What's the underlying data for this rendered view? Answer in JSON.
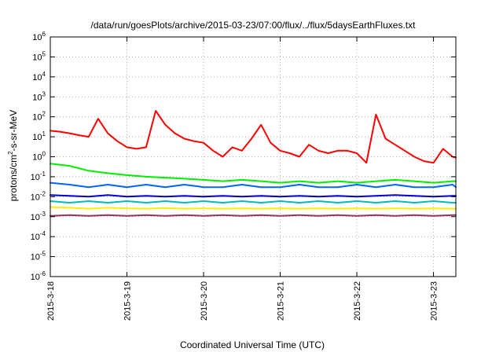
{
  "chart_data": {
    "type": "line",
    "title": "/data/run/goesPlots/archive/2015-03-23/07:00/flux/../flux/5daysEarthFluxes.txt",
    "xlabel": "Coordinated Universal Time (UTC)",
    "ylabel": "protons/cm2-s-sr-MeV",
    "ylabel_base": "protons/cm",
    "ylabel_sup": "2",
    "ylabel_rest": "-s-sr-MeV",
    "yscale": "log",
    "xlim": [
      "2015-03-18T00:00",
      "2015-03-23T07:00"
    ],
    "ylim": [
      1e-06,
      1000000.0
    ],
    "grid": true,
    "x_ticks": [
      "2015-3-18",
      "2015-3-19",
      "2015-3-20",
      "2015-3-21",
      "2015-3-22",
      "2015-3-23"
    ],
    "y_ticks": [
      {
        "value": 1e-06,
        "base": "10",
        "exp": "-6"
      },
      {
        "value": 1e-05,
        "base": "10",
        "exp": "-5"
      },
      {
        "value": 0.0001,
        "base": "10",
        "exp": "-4"
      },
      {
        "value": 0.001,
        "base": "10",
        "exp": "-3"
      },
      {
        "value": 0.01,
        "base": "10",
        "exp": "-2"
      },
      {
        "value": 0.1,
        "base": "10",
        "exp": "-1"
      },
      {
        "value": 1,
        "base": "10",
        "exp": "0"
      },
      {
        "value": 10,
        "base": "10",
        "exp": "1"
      },
      {
        "value": 100,
        "base": "10",
        "exp": "2"
      },
      {
        "value": 1000,
        "base": "10",
        "exp": "3"
      },
      {
        "value": 10000,
        "base": "10",
        "exp": "4"
      },
      {
        "value": 100000,
        "base": "10",
        "exp": "5"
      },
      {
        "value": 1000000,
        "base": "10",
        "exp": "6"
      }
    ],
    "series": [
      {
        "color": "#ff0000",
        "x": [
          "2015-03-18T00:00",
          "2015-03-18T03:00",
          "2015-03-18T06:00",
          "2015-03-18T09:00",
          "2015-03-18T12:00",
          "2015-03-18T15:00",
          "2015-03-18T18:00",
          "2015-03-18T21:00",
          "2015-03-19T00:00",
          "2015-03-19T03:00",
          "2015-03-19T06:00",
          "2015-03-19T09:00",
          "2015-03-19T12:00",
          "2015-03-19T15:00",
          "2015-03-19T18:00",
          "2015-03-19T21:00",
          "2015-03-20T00:00",
          "2015-03-20T03:00",
          "2015-03-20T06:00",
          "2015-03-20T09:00",
          "2015-03-20T12:00",
          "2015-03-20T15:00",
          "2015-03-20T18:00",
          "2015-03-20T21:00",
          "2015-03-21T00:00",
          "2015-03-21T03:00",
          "2015-03-21T06:00",
          "2015-03-21T09:00",
          "2015-03-21T12:00",
          "2015-03-21T15:00",
          "2015-03-21T18:00",
          "2015-03-21T21:00",
          "2015-03-22T00:00",
          "2015-03-22T03:00",
          "2015-03-22T06:00",
          "2015-03-22T09:00",
          "2015-03-22T12:00",
          "2015-03-22T15:00",
          "2015-03-22T18:00",
          "2015-03-22T21:00",
          "2015-03-23T00:00",
          "2015-03-23T03:00",
          "2015-03-23T06:00",
          "2015-03-23T07:00"
        ],
        "y": [
          20,
          18,
          15,
          12,
          10,
          80,
          15,
          6,
          3,
          2.5,
          3,
          200,
          40,
          15,
          8,
          6,
          5,
          2,
          1,
          3,
          2,
          8,
          40,
          5,
          2,
          1.5,
          1,
          4,
          2,
          1.5,
          2,
          2,
          1.5,
          0.5,
          130,
          8,
          4,
          2,
          1,
          0.6,
          0.5,
          2.5,
          1,
          0.9
        ]
      },
      {
        "color": "#00ee00",
        "x": [
          "2015-03-18T00:00",
          "2015-03-18T06:00",
          "2015-03-18T12:00",
          "2015-03-18T18:00",
          "2015-03-19T00:00",
          "2015-03-19T06:00",
          "2015-03-19T12:00",
          "2015-03-19T18:00",
          "2015-03-20T00:00",
          "2015-03-20T06:00",
          "2015-03-20T12:00",
          "2015-03-20T18:00",
          "2015-03-21T00:00",
          "2015-03-21T06:00",
          "2015-03-21T12:00",
          "2015-03-21T18:00",
          "2015-03-22T00:00",
          "2015-03-22T06:00",
          "2015-03-22T12:00",
          "2015-03-22T18:00",
          "2015-03-23T00:00",
          "2015-03-23T06:00",
          "2015-03-23T07:00"
        ],
        "y": [
          0.45,
          0.35,
          0.2,
          0.15,
          0.12,
          0.1,
          0.09,
          0.08,
          0.07,
          0.06,
          0.07,
          0.06,
          0.05,
          0.06,
          0.05,
          0.06,
          0.05,
          0.06,
          0.07,
          0.06,
          0.05,
          0.06,
          0.06
        ]
      },
      {
        "color": "#0066ff",
        "x": [
          "2015-03-18T00:00",
          "2015-03-18T06:00",
          "2015-03-18T12:00",
          "2015-03-18T18:00",
          "2015-03-19T00:00",
          "2015-03-19T06:00",
          "2015-03-19T12:00",
          "2015-03-19T18:00",
          "2015-03-20T00:00",
          "2015-03-20T06:00",
          "2015-03-20T12:00",
          "2015-03-20T18:00",
          "2015-03-21T00:00",
          "2015-03-21T06:00",
          "2015-03-21T12:00",
          "2015-03-21T18:00",
          "2015-03-22T00:00",
          "2015-03-22T06:00",
          "2015-03-22T12:00",
          "2015-03-22T18:00",
          "2015-03-23T00:00",
          "2015-03-23T06:00",
          "2015-03-23T07:00"
        ],
        "y": [
          0.05,
          0.04,
          0.03,
          0.04,
          0.03,
          0.04,
          0.03,
          0.04,
          0.03,
          0.03,
          0.04,
          0.03,
          0.03,
          0.04,
          0.03,
          0.03,
          0.04,
          0.03,
          0.04,
          0.03,
          0.03,
          0.04,
          0.03
        ]
      },
      {
        "color": "#0000cc",
        "x": [
          "2015-03-18T00:00",
          "2015-03-18T06:00",
          "2015-03-18T12:00",
          "2015-03-18T18:00",
          "2015-03-19T00:00",
          "2015-03-19T06:00",
          "2015-03-19T12:00",
          "2015-03-19T18:00",
          "2015-03-20T00:00",
          "2015-03-20T06:00",
          "2015-03-20T12:00",
          "2015-03-20T18:00",
          "2015-03-21T00:00",
          "2015-03-21T06:00",
          "2015-03-21T12:00",
          "2015-03-21T18:00",
          "2015-03-22T00:00",
          "2015-03-22T06:00",
          "2015-03-22T12:00",
          "2015-03-22T18:00",
          "2015-03-23T00:00",
          "2015-03-23T06:00",
          "2015-03-23T07:00"
        ],
        "y": [
          0.012,
          0.011,
          0.01,
          0.012,
          0.01,
          0.011,
          0.01,
          0.011,
          0.01,
          0.011,
          0.01,
          0.011,
          0.01,
          0.011,
          0.01,
          0.011,
          0.01,
          0.011,
          0.012,
          0.011,
          0.01,
          0.011,
          0.011
        ]
      },
      {
        "color": "#00bbbb",
        "x": [
          "2015-03-18T00:00",
          "2015-03-18T06:00",
          "2015-03-18T12:00",
          "2015-03-18T18:00",
          "2015-03-19T00:00",
          "2015-03-19T06:00",
          "2015-03-19T12:00",
          "2015-03-19T18:00",
          "2015-03-20T00:00",
          "2015-03-20T06:00",
          "2015-03-20T12:00",
          "2015-03-20T18:00",
          "2015-03-21T00:00",
          "2015-03-21T06:00",
          "2015-03-21T12:00",
          "2015-03-21T18:00",
          "2015-03-22T00:00",
          "2015-03-22T06:00",
          "2015-03-22T12:00",
          "2015-03-22T18:00",
          "2015-03-23T00:00",
          "2015-03-23T06:00",
          "2015-03-23T07:00"
        ],
        "y": [
          0.006,
          0.005,
          0.006,
          0.005,
          0.006,
          0.005,
          0.006,
          0.005,
          0.006,
          0.005,
          0.006,
          0.005,
          0.006,
          0.005,
          0.006,
          0.005,
          0.006,
          0.005,
          0.006,
          0.005,
          0.006,
          0.005,
          0.005
        ]
      },
      {
        "color": "#ffee00",
        "x": [
          "2015-03-18T00:00",
          "2015-03-18T06:00",
          "2015-03-18T12:00",
          "2015-03-18T18:00",
          "2015-03-19T00:00",
          "2015-03-19T06:00",
          "2015-03-19T12:00",
          "2015-03-19T18:00",
          "2015-03-20T00:00",
          "2015-03-20T06:00",
          "2015-03-20T12:00",
          "2015-03-20T18:00",
          "2015-03-21T00:00",
          "2015-03-21T06:00",
          "2015-03-21T12:00",
          "2015-03-21T18:00",
          "2015-03-22T00:00",
          "2015-03-22T06:00",
          "2015-03-22T12:00",
          "2015-03-22T18:00",
          "2015-03-23T00:00",
          "2015-03-23T06:00",
          "2015-03-23T07:00"
        ],
        "y": [
          0.003,
          0.0028,
          0.0025,
          0.0028,
          0.0026,
          0.0025,
          0.0027,
          0.0025,
          0.0026,
          0.0025,
          0.0026,
          0.0025,
          0.0026,
          0.0025,
          0.0026,
          0.0025,
          0.0026,
          0.0025,
          0.0026,
          0.0025,
          0.0026,
          0.0025,
          0.0025
        ]
      },
      {
        "color": "#993366",
        "x": [
          "2015-03-18T00:00",
          "2015-03-18T06:00",
          "2015-03-18T12:00",
          "2015-03-18T18:00",
          "2015-03-19T00:00",
          "2015-03-19T06:00",
          "2015-03-19T12:00",
          "2015-03-19T18:00",
          "2015-03-20T00:00",
          "2015-03-20T06:00",
          "2015-03-20T12:00",
          "2015-03-20T18:00",
          "2015-03-21T00:00",
          "2015-03-21T06:00",
          "2015-03-21T12:00",
          "2015-03-21T18:00",
          "2015-03-22T00:00",
          "2015-03-22T06:00",
          "2015-03-22T12:00",
          "2015-03-22T18:00",
          "2015-03-23T00:00",
          "2015-03-23T06:00",
          "2015-03-23T07:00"
        ],
        "y": [
          0.0011,
          0.0012,
          0.0011,
          0.0012,
          0.0011,
          0.0012,
          0.0011,
          0.0012,
          0.0011,
          0.0012,
          0.0011,
          0.0012,
          0.0011,
          0.0012,
          0.0011,
          0.0012,
          0.0011,
          0.0012,
          0.0011,
          0.0012,
          0.0011,
          0.0012,
          0.0012
        ]
      }
    ]
  }
}
